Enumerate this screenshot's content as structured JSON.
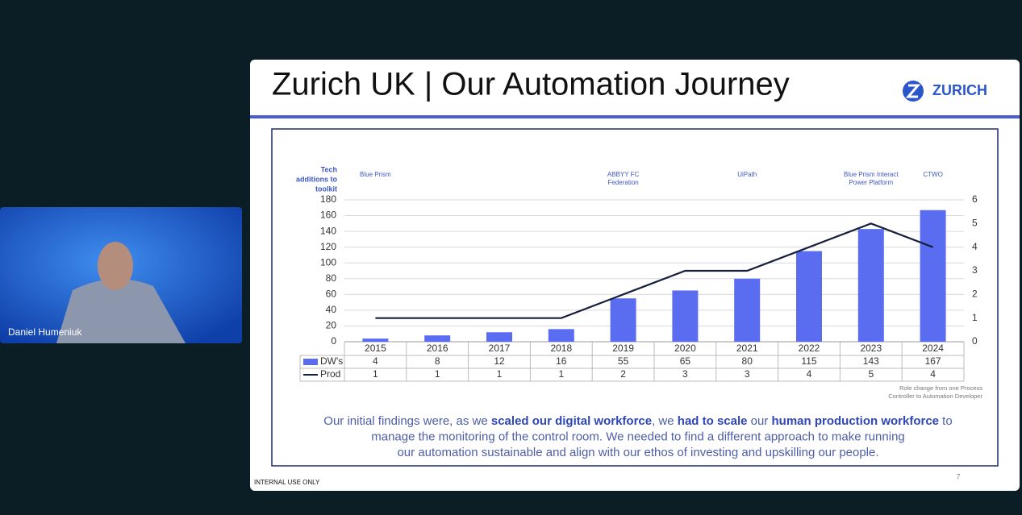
{
  "participant": {
    "name": "Daniel Humeniuk"
  },
  "slide": {
    "title": "Zurich UK | Our Automation Journey",
    "logo": "ZURICH",
    "chart_data": {
      "type": "bar-line-table",
      "annotation_label": [
        "Tech",
        "additions to",
        "toolkit"
      ],
      "tech_additions": [
        [
          "Blue Prism"
        ],
        null,
        null,
        null,
        [
          "ABBYY FC",
          "Federation"
        ],
        null,
        [
          "UiPath"
        ],
        null,
        [
          "Blue Prism Interact",
          "Power Platform"
        ],
        [
          "CTWO"
        ]
      ],
      "categories": [
        "2015",
        "2016",
        "2017",
        "2018",
        "2019",
        "2020",
        "2021",
        "2022",
        "2023",
        "2024"
      ],
      "series": [
        {
          "name": "DW's",
          "type": "bar",
          "color": "#5a6cf0",
          "values": [
            4,
            8,
            12,
            16,
            55,
            65,
            80,
            115,
            143,
            167
          ]
        },
        {
          "name": "Prod",
          "type": "line",
          "axis": "y2",
          "color": "#16203d",
          "values": [
            1,
            1,
            1,
            1,
            2,
            3,
            3,
            4,
            5,
            4
          ]
        }
      ],
      "ylim": [
        0,
        180
      ],
      "yticks": [
        0,
        20,
        40,
        60,
        80,
        100,
        120,
        140,
        160,
        180
      ],
      "y2lim": [
        0,
        6
      ],
      "y2ticks": [
        0,
        1,
        2,
        3,
        4,
        5,
        6
      ],
      "grid": true,
      "note": [
        "Role change from one Process",
        "Controller to Automation Developer"
      ]
    },
    "findings": [
      [
        {
          "text": "Our initial findings were, as we ",
          "bold": false
        },
        {
          "text": "scaled our digital workforce",
          "bold": true
        },
        {
          "text": ", we ",
          "bold": false
        },
        {
          "text": "had to scale",
          "bold": true
        },
        {
          "text": " our ",
          "bold": false
        },
        {
          "text": "human production workforce",
          "bold": true
        },
        {
          "text": " to",
          "bold": false
        }
      ],
      [
        {
          "text": "manage the monitoring of the control room. We needed to find a different approach to make running",
          "bold": false
        }
      ],
      [
        {
          "text": "our automation sustainable and align with our ethos of investing and upskilling our people.",
          "bold": false
        }
      ]
    ],
    "footer": "INTERNAL USE ONLY",
    "page_number": "7"
  }
}
